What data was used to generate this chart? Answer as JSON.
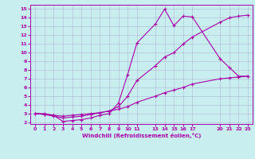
{
  "xlabel": "Windchill (Refroidissement éolien,°C)",
  "bg_color": "#c8eef0",
  "line_color": "#aa00aa",
  "grid_color": "#aaaacc",
  "xlim": [
    -0.5,
    23.5
  ],
  "ylim": [
    1.8,
    15.5
  ],
  "xticks": [
    0,
    1,
    2,
    3,
    4,
    5,
    6,
    7,
    8,
    9,
    10,
    11,
    13,
    14,
    15,
    16,
    17,
    20,
    21,
    22,
    23
  ],
  "yticks": [
    2,
    3,
    4,
    5,
    6,
    7,
    8,
    9,
    10,
    11,
    12,
    13,
    14,
    15
  ],
  "series1_x": [
    0,
    1,
    2,
    3,
    4,
    5,
    6,
    7,
    8,
    9,
    10,
    11,
    13,
    14,
    15,
    16,
    17,
    20,
    21,
    22,
    23
  ],
  "series1_y": [
    3.0,
    3.0,
    2.8,
    2.1,
    2.2,
    2.3,
    2.5,
    2.8,
    3.0,
    4.2,
    7.5,
    11.1,
    13.3,
    15.0,
    13.1,
    14.2,
    14.1,
    9.3,
    8.3,
    7.3,
    7.3
  ],
  "series2_x": [
    0,
    1,
    2,
    3,
    4,
    5,
    6,
    7,
    8,
    9,
    10,
    11,
    13,
    14,
    15,
    16,
    17,
    20,
    21,
    22,
    23
  ],
  "series2_y": [
    3.0,
    2.9,
    2.7,
    2.5,
    2.6,
    2.7,
    2.9,
    3.1,
    3.3,
    3.8,
    5.0,
    6.8,
    8.5,
    9.5,
    10.0,
    11.0,
    11.8,
    13.5,
    14.0,
    14.2,
    14.3
  ],
  "series3_x": [
    0,
    1,
    2,
    3,
    4,
    5,
    6,
    7,
    8,
    9,
    10,
    11,
    13,
    14,
    15,
    16,
    17,
    20,
    21,
    22,
    23
  ],
  "series3_y": [
    3.0,
    2.9,
    2.8,
    2.7,
    2.8,
    2.9,
    3.0,
    3.1,
    3.3,
    3.5,
    3.8,
    4.3,
    5.0,
    5.4,
    5.7,
    6.0,
    6.4,
    7.0,
    7.1,
    7.2,
    7.3
  ]
}
